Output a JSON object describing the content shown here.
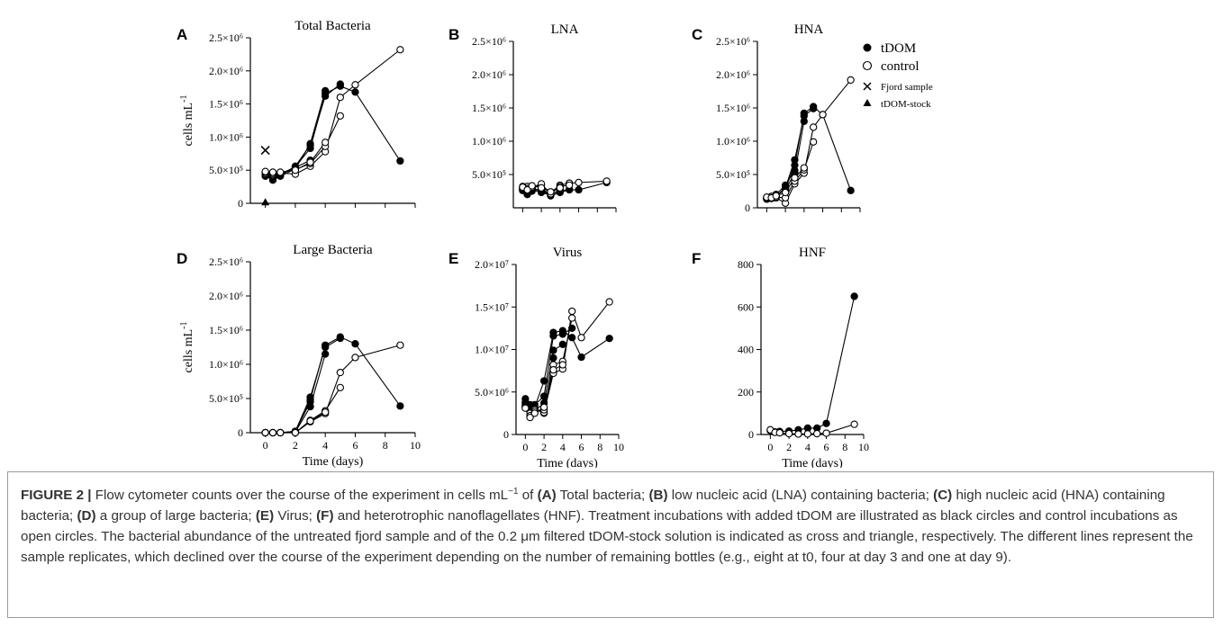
{
  "figure_label": "FIGURE 2 |",
  "caption": {
    "p1": "Flow cytometer counts over the course of the experiment in cells mL",
    "p1_sup": "−1",
    "p1_of": " of ",
    "refA": "(A)",
    "tA": " Total bacteria; ",
    "refB": "(B)",
    "tB": " low nucleic acid (LNA) containing bacteria; ",
    "refC": "(C)",
    "tC": " high nucleic acid (HNA) containing bacteria; ",
    "refD": "(D)",
    "tD": " a group of large bacteria; ",
    "refE": "(E)",
    "tE": " Virus; ",
    "refF": "(F)",
    "tF": " and heterotrophic nanoflagellates (HNF). Treatment incubations with added tDOM are illustrated as black circles and control incubations as open circles. The bacterial abundance of the untreated fjord sample and of the 0.2 μm filtered tDOM-stock solution is indicated as cross and triangle, respectively. The different lines represent the sample replicates, which declined over the course of the experiment depending on the number of remaining bottles (e.g., eight at t0, four at day 3 and one at day 9)."
  },
  "legend": {
    "tdom": "tDOM",
    "control": "control",
    "fjord": "Fjord sample",
    "stock": "tDOM-stock"
  },
  "chart_data": [
    {
      "panel": "A",
      "type": "scatter",
      "title": "Total Bacteria",
      "ylabel": "cells mL",
      "ylabel_sup": "-1",
      "xlabel": "",
      "xlim": [
        -1,
        10
      ],
      "ylim": [
        0,
        2500000
      ],
      "yticks": [
        {
          "v": 0,
          "l": "0"
        },
        {
          "v": 500000,
          "l": "5.0×10⁵"
        },
        {
          "v": 1000000,
          "l": "1.0×10⁶"
        },
        {
          "v": 1500000,
          "l": "1.5×10⁶"
        },
        {
          "v": 2000000,
          "l": "2.0×10⁶"
        },
        {
          "v": 2500000,
          "l": "2.5×10⁶"
        }
      ],
      "xticks": [],
      "series": [
        {
          "fill": "black",
          "x": [
            0,
            0.5,
            1,
            2,
            3,
            4,
            5,
            6,
            9
          ],
          "y": [
            420000,
            420000,
            440000,
            550000,
            830000,
            1660000,
            1770000,
            1680000,
            640000
          ]
        },
        {
          "fill": "black",
          "x": [
            0,
            0.5,
            1,
            2,
            3,
            4,
            5
          ],
          "y": [
            410000,
            380000,
            420000,
            560000,
            880000,
            1620000,
            1800000
          ]
        },
        {
          "fill": "black",
          "x": [
            0,
            0.5,
            1,
            2,
            3,
            4
          ],
          "y": [
            420000,
            350000,
            410000,
            520000,
            900000,
            1700000
          ]
        },
        {
          "fill": "black",
          "x": [
            0,
            0.5,
            1,
            2,
            3
          ],
          "y": [
            430000,
            400000,
            450000,
            540000,
            650000
          ]
        },
        {
          "fill": "white",
          "x": [
            0,
            0.5,
            1,
            2,
            3,
            4,
            5,
            6,
            9
          ],
          "y": [
            450000,
            430000,
            460000,
            440000,
            560000,
            780000,
            1600000,
            1790000,
            2320000
          ]
        },
        {
          "fill": "white",
          "x": [
            0,
            0.5,
            1,
            2,
            3,
            4,
            5
          ],
          "y": [
            470000,
            450000,
            460000,
            510000,
            600000,
            860000,
            1320000
          ]
        },
        {
          "fill": "white",
          "x": [
            0,
            0.5,
            1,
            2,
            3,
            4
          ],
          "y": [
            480000,
            470000,
            470000,
            500000,
            620000,
            920000
          ]
        }
      ],
      "markers": [
        {
          "shape": "cross",
          "x": 0,
          "y": 800000
        },
        {
          "shape": "triangle",
          "x": 0,
          "y": 10000
        }
      ]
    },
    {
      "panel": "B",
      "type": "scatter",
      "title": "LNA",
      "ylabel": "",
      "xlabel": "",
      "xlim": [
        -1,
        10
      ],
      "ylim": [
        0,
        2500000
      ],
      "yticks": [
        {
          "v": 500000,
          "l": "5.0×10⁵"
        },
        {
          "v": 1000000,
          "l": "1.0×10⁶"
        },
        {
          "v": 1500000,
          "l": "1.5×10⁶"
        },
        {
          "v": 2000000,
          "l": "2.0×10⁶"
        },
        {
          "v": 2500000,
          "l": "2.5×10⁶"
        }
      ],
      "xticks": [],
      "series": [
        {
          "fill": "black",
          "x": [
            0,
            0.5,
            1,
            2,
            3,
            4,
            5,
            6,
            9
          ],
          "y": [
            280000,
            260000,
            280000,
            260000,
            180000,
            230000,
            270000,
            270000,
            380000
          ]
        },
        {
          "fill": "black",
          "x": [
            0,
            0.5,
            1,
            2,
            3,
            4,
            5
          ],
          "y": [
            270000,
            220000,
            250000,
            290000,
            200000,
            250000,
            280000
          ]
        },
        {
          "fill": "black",
          "x": [
            0,
            0.5,
            1,
            2,
            3,
            4
          ],
          "y": [
            260000,
            200000,
            270000,
            230000,
            190000,
            270000
          ]
        },
        {
          "fill": "black",
          "x": [
            0,
            0.5,
            1,
            2,
            3
          ],
          "y": [
            290000,
            240000,
            300000,
            250000,
            220000
          ]
        },
        {
          "fill": "white",
          "x": [
            0,
            0.5,
            1,
            2,
            3,
            4,
            5,
            6,
            9
          ],
          "y": [
            300000,
            320000,
            300000,
            340000,
            230000,
            340000,
            370000,
            380000,
            400000
          ]
        },
        {
          "fill": "white",
          "x": [
            0,
            0.5,
            1,
            2,
            3,
            4,
            5
          ],
          "y": [
            320000,
            290000,
            310000,
            360000,
            210000,
            320000,
            340000
          ]
        },
        {
          "fill": "white",
          "x": [
            0,
            0.5,
            1,
            2,
            3,
            4
          ],
          "y": [
            310000,
            270000,
            330000,
            300000,
            240000,
            300000
          ]
        }
      ],
      "markers": []
    },
    {
      "panel": "C",
      "type": "scatter",
      "title": "HNA",
      "ylabel": "",
      "xlabel": "",
      "xlim": [
        -1,
        10
      ],
      "ylim": [
        0,
        2500000
      ],
      "yticks": [
        {
          "v": 0,
          "l": "0"
        },
        {
          "v": 500000,
          "l": "5.0×10⁵"
        },
        {
          "v": 1000000,
          "l": "1.0×10⁶"
        },
        {
          "v": 1500000,
          "l": "1.5×10⁶"
        },
        {
          "v": 2000000,
          "l": "2.0×10⁶"
        },
        {
          "v": 2500000,
          "l": "2.5×10⁶"
        }
      ],
      "xticks": [],
      "series": [
        {
          "fill": "black",
          "x": [
            0,
            0.5,
            1,
            2,
            3,
            4,
            5,
            6,
            9
          ],
          "y": [
            140000,
            150000,
            170000,
            290000,
            640000,
            1420000,
            1520000,
            1400000,
            260000
          ]
        },
        {
          "fill": "black",
          "x": [
            0,
            0.5,
            1,
            2,
            3,
            4,
            5
          ],
          "y": [
            130000,
            160000,
            180000,
            300000,
            720000,
            1380000,
            1490000
          ]
        },
        {
          "fill": "black",
          "x": [
            0,
            0.5,
            1,
            2,
            3,
            4
          ],
          "y": [
            150000,
            140000,
            190000,
            270000,
            520000,
            1300000
          ]
        },
        {
          "fill": "black",
          "x": [
            0,
            0.5,
            1,
            2,
            3
          ],
          "y": [
            140000,
            170000,
            200000,
            340000,
            560000
          ]
        },
        {
          "fill": "white",
          "x": [
            0,
            0.5,
            1,
            2,
            3,
            4,
            5,
            6,
            9
          ],
          "y": [
            140000,
            160000,
            150000,
            70000,
            360000,
            520000,
            1210000,
            1400000,
            1920000
          ]
        },
        {
          "fill": "white",
          "x": [
            0,
            0.5,
            1,
            2,
            3,
            4,
            5
          ],
          "y": [
            150000,
            170000,
            160000,
            150000,
            400000,
            570000,
            990000
          ]
        },
        {
          "fill": "white",
          "x": [
            0,
            0.5,
            1,
            2,
            3,
            4
          ],
          "y": [
            160000,
            150000,
            180000,
            230000,
            450000,
            600000
          ]
        }
      ],
      "markers": []
    },
    {
      "panel": "D",
      "type": "scatter",
      "title": "Large Bacteria",
      "ylabel": "cells mL",
      "ylabel_sup": "-1",
      "xlabel": "Time (days)",
      "xlim": [
        -1,
        10
      ],
      "ylim": [
        0,
        2500000
      ],
      "yticks": [
        {
          "v": 0,
          "l": "0"
        },
        {
          "v": 500000,
          "l": "5.0×10⁵"
        },
        {
          "v": 1000000,
          "l": "1.0×10⁶"
        },
        {
          "v": 1500000,
          "l": "1.5×10⁶"
        },
        {
          "v": 2000000,
          "l": "2.0×10⁶"
        },
        {
          "v": 2500000,
          "l": "2.5×10⁶"
        }
      ],
      "xticks": [
        0,
        2,
        4,
        6,
        8,
        10
      ],
      "series": [
        {
          "fill": "black",
          "x": [
            0,
            0.5,
            1,
            2,
            3,
            4,
            5,
            6,
            9
          ],
          "y": [
            0,
            0,
            0,
            10000,
            480000,
            1280000,
            1400000,
            1300000,
            390000
          ]
        },
        {
          "fill": "black",
          "x": [
            0,
            0.5,
            1,
            2,
            3,
            4,
            5
          ],
          "y": [
            0,
            0,
            0,
            20000,
            520000,
            1250000,
            1380000
          ]
        },
        {
          "fill": "black",
          "x": [
            0,
            0.5,
            1,
            2,
            3,
            4
          ],
          "y": [
            0,
            0,
            0,
            10000,
            380000,
            1150000
          ]
        },
        {
          "fill": "black",
          "x": [
            0,
            0.5,
            1,
            2,
            3
          ],
          "y": [
            0,
            0,
            0,
            20000,
            450000
          ]
        },
        {
          "fill": "white",
          "x": [
            0,
            0.5,
            1,
            2,
            3,
            4,
            5,
            6,
            9
          ],
          "y": [
            0,
            0,
            0,
            0,
            160000,
            280000,
            880000,
            1100000,
            1280000
          ]
        },
        {
          "fill": "white",
          "x": [
            0,
            0.5,
            1,
            2,
            3,
            4,
            5
          ],
          "y": [
            0,
            0,
            0,
            0,
            180000,
            320000,
            660000
          ]
        },
        {
          "fill": "white",
          "x": [
            0,
            0.5,
            1,
            2,
            3,
            4
          ],
          "y": [
            0,
            0,
            0,
            0,
            170000,
            300000
          ]
        }
      ],
      "markers": []
    },
    {
      "panel": "E",
      "type": "scatter",
      "title": "Virus",
      "ylabel": "",
      "xlabel": "Time (days)",
      "xlim": [
        -1,
        10
      ],
      "ylim": [
        0,
        20000000
      ],
      "yticks": [
        {
          "v": 0,
          "l": "0"
        },
        {
          "v": 5000000,
          "l": "5.0×10⁶"
        },
        {
          "v": 10000000,
          "l": "1.0×10⁷"
        },
        {
          "v": 15000000,
          "l": "1.5×10⁷"
        },
        {
          "v": 20000000,
          "l": "2.0×10⁷"
        }
      ],
      "xticks": [
        0,
        2,
        4,
        6,
        8,
        10
      ],
      "series": [
        {
          "fill": "black",
          "x": [
            0,
            0.5,
            1,
            2,
            3,
            4,
            5,
            6,
            9
          ],
          "y": [
            4200000,
            3500000,
            3200000,
            6300000,
            12000000,
            12200000,
            11400000,
            9100000,
            11300000
          ]
        },
        {
          "fill": "black",
          "x": [
            0,
            0.5,
            1,
            2,
            3,
            4,
            5
          ],
          "y": [
            3600000,
            3000000,
            3500000,
            4500000,
            11600000,
            11800000,
            12500000
          ]
        },
        {
          "fill": "black",
          "x": [
            0,
            0.5,
            1,
            2,
            3,
            4
          ],
          "y": [
            3800000,
            3200000,
            2800000,
            3700000,
            9900000,
            10600000
          ]
        },
        {
          "fill": "black",
          "x": [
            0,
            0.5,
            1,
            2,
            3
          ],
          "y": [
            3400000,
            2800000,
            3000000,
            2500000,
            9000000
          ]
        },
        {
          "fill": "white",
          "x": [
            0,
            0.5,
            1,
            2,
            3,
            4,
            5,
            6,
            9
          ],
          "y": [
            3300000,
            2500000,
            2900000,
            2600000,
            7200000,
            7700000,
            14500000,
            11400000,
            15600000
          ]
        },
        {
          "fill": "white",
          "x": [
            0,
            0.5,
            1,
            2,
            3,
            4,
            5
          ],
          "y": [
            3200000,
            2200000,
            2700000,
            2900000,
            8200000,
            8600000,
            13700000
          ]
        },
        {
          "fill": "white",
          "x": [
            0,
            0.5,
            1,
            2,
            3,
            4
          ],
          "y": [
            3100000,
            2000000,
            2500000,
            3200000,
            7600000,
            8200000
          ]
        }
      ],
      "markers": []
    },
    {
      "panel": "F",
      "type": "scatter",
      "title": "HNF",
      "ylabel": "",
      "xlabel": "Time (days)",
      "xlim": [
        -1,
        10
      ],
      "ylim": [
        0,
        800
      ],
      "yticks": [
        {
          "v": 0,
          "l": "0"
        },
        {
          "v": 200,
          "l": "200"
        },
        {
          "v": 400,
          "l": "400"
        },
        {
          "v": 600,
          "l": "600"
        },
        {
          "v": 800,
          "l": "800"
        }
      ],
      "xticks": [
        0,
        2,
        4,
        6,
        8,
        10
      ],
      "series": [
        {
          "fill": "black",
          "x": [
            0,
            0.5,
            1,
            2,
            3,
            4,
            5,
            6,
            9
          ],
          "y": [
            18,
            12,
            14,
            16,
            22,
            30,
            30,
            52,
            650
          ]
        },
        {
          "fill": "white",
          "x": [
            0,
            0.5,
            1,
            2,
            3,
            4,
            5,
            6,
            9
          ],
          "y": [
            22,
            10,
            8,
            4,
            2,
            3,
            4,
            6,
            48
          ]
        }
      ],
      "markers": []
    }
  ]
}
